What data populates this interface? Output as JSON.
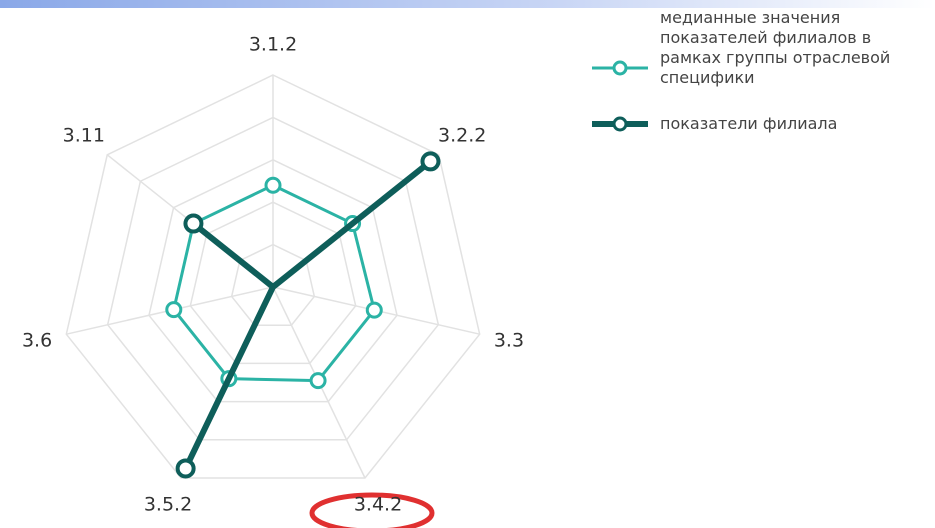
{
  "chart_data": {
    "type": "radar",
    "categories": [
      "3.1.2",
      "3.2.2",
      "3.3",
      "3.4.2",
      "3.5.2",
      "3.6",
      "3.11"
    ],
    "ylim": [
      0,
      1
    ],
    "yticks": [
      0.2,
      0.4,
      0.6,
      0.8,
      1.0
    ],
    "grid": true,
    "series": [
      {
        "name": "медианные значения показателей филиалов в рамках группы отраслевой специфики",
        "color": "#2bb3a5",
        "values": [
          0.48,
          0.48,
          0.49,
          0.49,
          0.48,
          0.48,
          0.48
        ]
      },
      {
        "name": "показатели филиала",
        "color": "#0e5e5a",
        "values": [
          0,
          0.95,
          0,
          0,
          0.95,
          0,
          0.48
        ]
      }
    ]
  }
}
